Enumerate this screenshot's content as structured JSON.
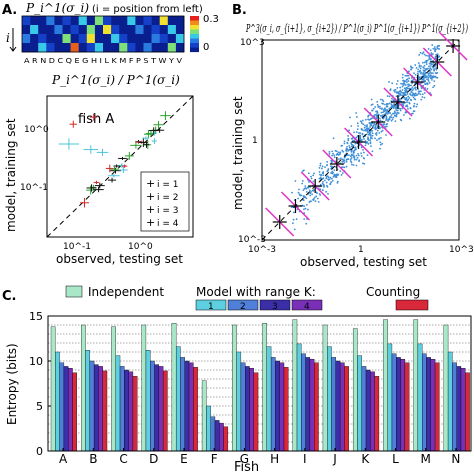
{
  "panel_a": {
    "letter": "A.",
    "heatmap_title": "P_i^1(σ_i)",
    "heatmap_note": "(i = position from left)",
    "row_axis_label": "i",
    "colorbar_ticks": [
      "0.3",
      "0"
    ],
    "amino_acids": "A R N D C Q E G H I L K M F P S T W Y V",
    "ratio_title": "P_i^1(σ_i) / P^1(σ_i)",
    "fish_label": "fish A",
    "xlabel": "observed, testing set",
    "ylabel": "model, training set",
    "legend": [
      {
        "label": "i = 1",
        "color": "#111111"
      },
      {
        "label": "i = 2",
        "color": "#2ca02c"
      },
      {
        "label": "i = 3",
        "color": "#d62728"
      },
      {
        "label": "i = 4",
        "color": "#4fc3d9"
      }
    ],
    "ticks_x": [
      "10^-1",
      "10^0"
    ],
    "ticks_y": [
      "10^-1",
      "10^0"
    ]
  },
  "panel_b": {
    "letter": "B.",
    "title": "P^3(σ_i, σ_{i+1}, σ_{i+2}) / P^1(σ_i) P^1(σ_{i+1}) P^1(σ_{i+2})",
    "xlabel": "observed, testing set",
    "ylabel": "model, training set",
    "ticks_x": [
      "10^-3",
      "1",
      "10^3"
    ],
    "ticks_y": [
      "10^-3",
      "1",
      "10^3"
    ]
  },
  "panel_c": {
    "letter": "C.",
    "legend_independent": "Independent",
    "legend_model": "Model with range K:",
    "legend_model_items": [
      "1",
      "2",
      "3",
      "4"
    ],
    "legend_counting": "Counting",
    "xlabel": "Fish",
    "ylabel": "Entropy (bits)"
  },
  "colors": {
    "independent": "#a8e8c8",
    "k1": "#5ecfe0",
    "k2": "#4f7fd8",
    "k3": "#3b2fa8",
    "k4": "#7a2fb8",
    "counting": "#d8283a",
    "scatter": "#3d8fd8",
    "bin_cross": "#e033c8"
  },
  "chart_data": {
    "type": "bar",
    "title": "",
    "xlabel": "Fish",
    "ylabel": "Entropy (bits)",
    "ylim": [
      0,
      15
    ],
    "yticks": [
      0,
      5,
      10,
      15
    ],
    "categories": [
      "A",
      "B",
      "C",
      "D",
      "E",
      "F",
      "G",
      "H",
      "I",
      "J",
      "K",
      "L",
      "M",
      "N"
    ],
    "series": [
      {
        "name": "Independent",
        "values": [
          13.8,
          14.0,
          13.8,
          14.0,
          14.2,
          7.8,
          14.0,
          14.2,
          14.6,
          14.0,
          13.6,
          14.6,
          14.6,
          14.0
        ]
      },
      {
        "name": "1",
        "values": [
          11.0,
          11.2,
          10.6,
          11.2,
          11.6,
          5.0,
          11.0,
          11.6,
          11.9,
          11.6,
          10.6,
          11.9,
          11.9,
          11.0
        ]
      },
      {
        "name": "2",
        "values": [
          9.8,
          10.0,
          9.4,
          10.0,
          10.4,
          3.8,
          9.8,
          10.4,
          10.8,
          10.4,
          9.4,
          10.8,
          10.8,
          9.8
        ]
      },
      {
        "name": "3",
        "values": [
          9.4,
          9.6,
          9.0,
          9.6,
          10.0,
          3.4,
          9.4,
          10.0,
          10.4,
          10.0,
          9.0,
          10.4,
          10.4,
          9.4
        ]
      },
      {
        "name": "4",
        "values": [
          9.2,
          9.4,
          8.8,
          9.4,
          9.8,
          3.1,
          9.2,
          9.8,
          10.2,
          9.8,
          8.8,
          10.2,
          10.2,
          9.2
        ]
      },
      {
        "name": "Counting",
        "values": [
          8.7,
          8.9,
          8.3,
          8.9,
          9.3,
          2.7,
          8.7,
          9.3,
          9.8,
          9.4,
          8.3,
          9.8,
          9.8,
          8.7
        ]
      }
    ]
  }
}
